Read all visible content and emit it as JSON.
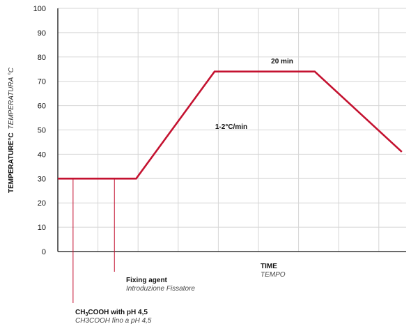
{
  "chart_data": {
    "type": "line",
    "ylabel": "TEMPERATURE°C",
    "ylabel_it": "TEMPERATURA °C",
    "xlabel": "TIME",
    "xlabel_it": "TEMPO",
    "ylim": [
      0,
      100
    ],
    "yticks": [
      "0",
      "10",
      "20",
      "30",
      "40",
      "50",
      "60",
      "70",
      "80",
      "90",
      "100"
    ],
    "grid": true,
    "series_color": "#c41230",
    "series": [
      {
        "points": [
          {
            "x": 0.0,
            "y": 30
          },
          {
            "x": 1.8,
            "y": 30
          },
          {
            "x": 3.6,
            "y": 74
          },
          {
            "x": 5.9,
            "y": 74
          },
          {
            "x": 7.9,
            "y": 41
          }
        ]
      }
    ],
    "annotations": {
      "rate": "1-2°C/min",
      "hold": "20 min"
    },
    "events": [
      {
        "x": 0.35,
        "label_main": "H",
        "label_sub": "3",
        "label_rest": "COOH with pH 4,5",
        "label_prefix": "C",
        "label_it": "CH3COOH fino a pH 4,5"
      },
      {
        "x": 1.3,
        "label": "Fixing agent",
        "label_it": "Introduzione Fissatore"
      }
    ]
  }
}
